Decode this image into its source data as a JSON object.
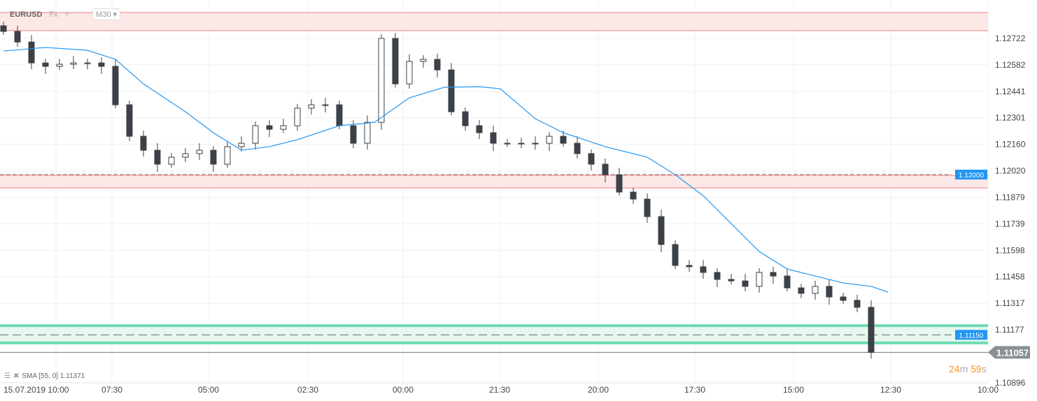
{
  "header": {
    "symbol": "EURUSD",
    "market": "Fx",
    "timeframe": "M30"
  },
  "indicator": {
    "label": "SMA [55, 0] 1.11371"
  },
  "timer": {
    "minutes": "24",
    "m": "m",
    "seconds": "59",
    "s": "s"
  },
  "colors": {
    "up": "#ffffff",
    "down": "#3b4147",
    "sma": "#2196f3",
    "resistance": "#fde8e8",
    "resistance_line": "#f08080",
    "support": "#e6f7f0",
    "support_line": "#6ddbb0",
    "price_tag": "#2196f3",
    "current_tag": "#8a9196"
  },
  "chart_data": {
    "type": "candlestick",
    "ylim": [
      1.1086,
      1.1296
    ],
    "y_ticks": [
      "1.12722",
      "1.12582",
      "1.12441",
      "1.12301",
      "1.12160",
      "1.12020",
      "1.11879",
      "1.11739",
      "1.11598",
      "1.11458",
      "1.11317",
      "1.11177",
      "1.10896"
    ],
    "x_ticks": [
      "15.07.2019  10:00",
      "07:30",
      "05:00",
      "02:30",
      "00:00",
      "21:30",
      "20:00",
      "17:30",
      "15:00",
      "12:30",
      "10:00"
    ],
    "closes": [
      1.12759,
      1.12703,
      1.12592,
      1.12574,
      1.12585,
      1.12592,
      1.12592,
      1.12574,
      1.1237,
      1.12203,
      1.12129,
      1.12055,
      1.12092,
      1.12111,
      1.12129,
      1.12055,
      1.12148,
      1.12166,
      1.12259,
      1.1224,
      1.12259,
      1.12352,
      1.1237,
      1.1237,
      1.12259,
      1.12166,
      1.12277,
      1.12722,
      1.12481,
      1.126,
      1.12611,
      1.12555,
      1.12333,
      1.12259,
      1.12222,
      1.12166,
      1.12166,
      1.12166,
      1.12166,
      1.12203,
      1.12166,
      1.12111,
      1.12055,
      1.11999,
      1.11907,
      1.1187,
      1.11777,
      1.11629,
      1.11518,
      1.11511,
      1.11481,
      1.11444,
      1.11436,
      1.11407,
      1.11481,
      1.11462,
      1.11399,
      1.1137,
      1.11407,
      1.11351,
      1.11333,
      1.11296,
      1.11057
    ],
    "sma": {
      "name": "SMA [55, 0]",
      "points": [
        [
          0,
          1.12655
        ],
        [
          3,
          1.12674
        ],
        [
          6,
          1.12659
        ],
        [
          8,
          1.12611
        ],
        [
          10,
          1.12481
        ],
        [
          13,
          1.12333
        ],
        [
          15,
          1.12222
        ],
        [
          17,
          1.12129
        ],
        [
          19,
          1.12148
        ],
        [
          21,
          1.12185
        ],
        [
          24,
          1.12259
        ],
        [
          26.5,
          1.12277
        ],
        [
          29,
          1.12407
        ],
        [
          31.5,
          1.12463
        ],
        [
          34,
          1.12466
        ],
        [
          35.5,
          1.12455
        ],
        [
          38,
          1.12296
        ],
        [
          40,
          1.12222
        ],
        [
          43,
          1.12148
        ],
        [
          46,
          1.12092
        ],
        [
          48,
          1.11999
        ],
        [
          50,
          1.11888
        ],
        [
          52,
          1.1174
        ],
        [
          54,
          1.11592
        ],
        [
          56,
          1.11499
        ],
        [
          58,
          1.11462
        ],
        [
          60,
          1.11425
        ],
        [
          62,
          1.11407
        ],
        [
          63.2,
          1.11377
        ]
      ]
    },
    "zones": [
      {
        "type": "resistance",
        "from": 1.12763,
        "to": 1.12859
      },
      {
        "type": "resistance",
        "from": 1.11929,
        "to": 1.11996,
        "level": 1.12,
        "label": "1.12000"
      },
      {
        "type": "support",
        "from": 1.11107,
        "to": 1.11199,
        "level": 1.1115,
        "label": "1.11150"
      }
    ],
    "current_price": "1.11057"
  }
}
